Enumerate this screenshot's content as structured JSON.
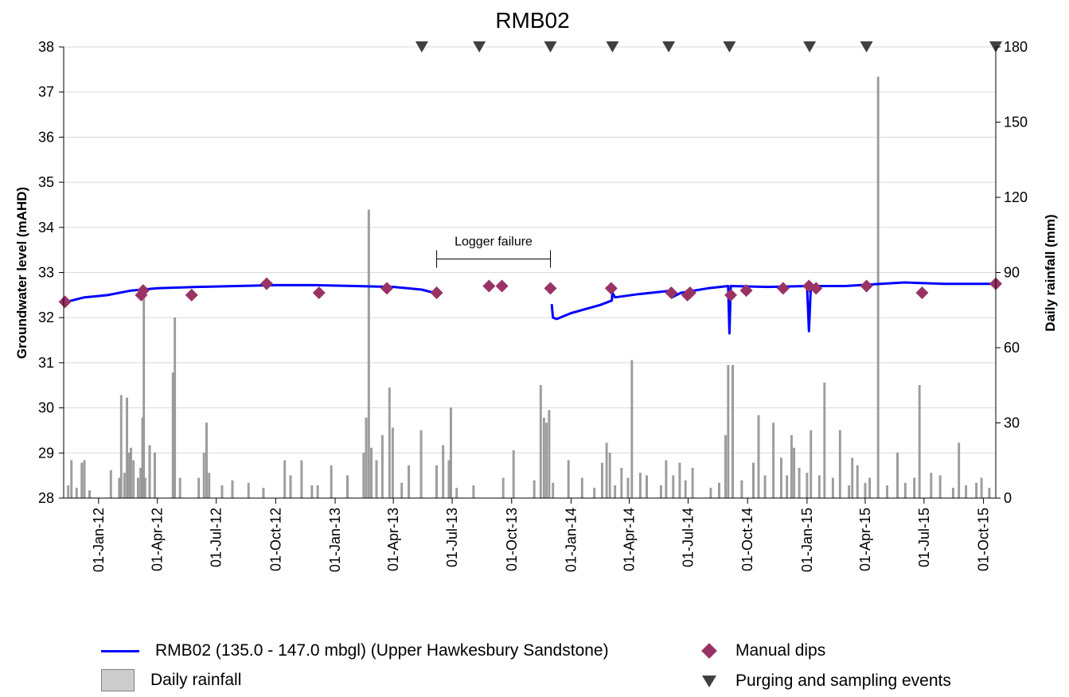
{
  "chart_data": {
    "type": "line",
    "title": "RMB02",
    "ylabel": "Groundwater level (mAHD)",
    "y2label": "Daily rainfall (mm)",
    "ylim": [
      28,
      38
    ],
    "y2lim": [
      0,
      180
    ],
    "xlim": [
      "2011-11-08",
      "2015-10-20"
    ],
    "yticks": [
      28,
      29,
      30,
      31,
      32,
      33,
      34,
      35,
      36,
      37,
      38
    ],
    "y2ticks": [
      0,
      30,
      60,
      90,
      120,
      150,
      180
    ],
    "xticks": [
      {
        "date": "2012-01-01",
        "label": "01-Jan-12"
      },
      {
        "date": "2012-04-01",
        "label": "01-Apr-12"
      },
      {
        "date": "2012-07-01",
        "label": "01-Jul-12"
      },
      {
        "date": "2012-10-01",
        "label": "01-Oct-12"
      },
      {
        "date": "2013-01-01",
        "label": "01-Jan-13"
      },
      {
        "date": "2013-04-01",
        "label": "01-Apr-13"
      },
      {
        "date": "2013-07-01",
        "label": "01-Jul-13"
      },
      {
        "date": "2013-10-01",
        "label": "01-Oct-13"
      },
      {
        "date": "2014-01-01",
        "label": "01-Jan-14"
      },
      {
        "date": "2014-04-01",
        "label": "01-Apr-14"
      },
      {
        "date": "2014-07-01",
        "label": "01-Jul-14"
      },
      {
        "date": "2014-10-01",
        "label": "01-Oct-14"
      },
      {
        "date": "2015-01-01",
        "label": "01-Jan-15"
      },
      {
        "date": "2015-04-01",
        "label": "01-Apr-15"
      },
      {
        "date": "2015-07-01",
        "label": "01-Jul-15"
      },
      {
        "date": "2015-10-01",
        "label": "01-Oct-15"
      }
    ],
    "grid": "horizontal",
    "colors": {
      "groundwater": "#0000ff",
      "rainfall_fill": "#a0a0a0",
      "rainfall_edge": "#808080",
      "dips": "#993366",
      "events": "#404040",
      "grid": "#d9d9d9"
    },
    "series": [
      {
        "name": "RMB02 (135.0 - 147.0 mbgl) (Upper Hawkesbury Sandstone)",
        "type": "line",
        "segments": [
          [
            [
              "2011-11-12",
              32.35
            ],
            [
              "2011-12-10",
              32.45
            ],
            [
              "2012-01-15",
              32.5
            ],
            [
              "2012-02-20",
              32.6
            ],
            [
              "2012-04-01",
              32.65
            ],
            [
              "2012-06-01",
              32.68
            ],
            [
              "2012-08-01",
              32.7
            ],
            [
              "2012-10-01",
              32.72
            ],
            [
              "2012-12-01",
              32.72
            ],
            [
              "2013-02-01",
              32.7
            ],
            [
              "2013-04-01",
              32.68
            ],
            [
              "2013-05-15",
              32.62
            ],
            [
              "2013-06-03",
              32.55
            ]
          ],
          [
            [
              "2013-12-02",
              32.3
            ],
            [
              "2013-12-04",
              32.0
            ],
            [
              "2013-12-10",
              31.97
            ],
            [
              "2014-01-01",
              32.1
            ],
            [
              "2014-02-15",
              32.28
            ],
            [
              "2014-03-05",
              32.38
            ],
            [
              "2014-03-06",
              32.55
            ],
            [
              "2014-03-10",
              32.45
            ],
            [
              "2014-04-15",
              32.52
            ],
            [
              "2014-05-25",
              32.58
            ],
            [
              "2014-06-05",
              32.6
            ],
            [
              "2014-06-06",
              32.45
            ],
            [
              "2014-06-20",
              32.55
            ],
            [
              "2014-08-01",
              32.65
            ],
            [
              "2014-09-01",
              32.7
            ],
            [
              "2014-09-03",
              31.65
            ],
            [
              "2014-09-05",
              32.7
            ],
            [
              "2014-11-01",
              32.68
            ],
            [
              "2015-01-01",
              32.7
            ],
            [
              "2015-01-04",
              31.7
            ],
            [
              "2015-01-07",
              32.7
            ],
            [
              "2015-03-01",
              32.7
            ],
            [
              "2015-04-25",
              32.75
            ],
            [
              "2015-06-01",
              32.78
            ],
            [
              "2015-08-01",
              32.75
            ],
            [
              "2015-10-20",
              32.75
            ]
          ]
        ]
      },
      {
        "name": "Manual dips",
        "type": "scatter",
        "points": [
          [
            "2011-11-10",
            32.35
          ],
          [
            "2012-03-07",
            32.5
          ],
          [
            "2012-03-10",
            32.6
          ],
          [
            "2012-05-24",
            32.5
          ],
          [
            "2012-09-17",
            32.75
          ],
          [
            "2012-12-07",
            32.55
          ],
          [
            "2013-03-22",
            32.65
          ],
          [
            "2013-06-07",
            32.55
          ],
          [
            "2013-08-27",
            32.7
          ],
          [
            "2013-09-16",
            32.7
          ],
          [
            "2013-11-30",
            32.65
          ],
          [
            "2014-03-04",
            32.65
          ],
          [
            "2014-06-05",
            32.55
          ],
          [
            "2014-06-30",
            32.5
          ],
          [
            "2014-07-04",
            32.55
          ],
          [
            "2014-09-05",
            32.5
          ],
          [
            "2014-09-29",
            32.6
          ],
          [
            "2014-11-25",
            32.65
          ],
          [
            "2015-01-04",
            32.7
          ],
          [
            "2015-01-15",
            32.65
          ],
          [
            "2015-04-03",
            32.7
          ],
          [
            "2015-06-28",
            32.55
          ],
          [
            "2015-10-20",
            32.75
          ]
        ]
      },
      {
        "name": "Purging and sampling events",
        "type": "markers",
        "dates": [
          "2013-05-15",
          "2013-08-12",
          "2013-11-30",
          "2014-03-06",
          "2014-06-01",
          "2014-09-03",
          "2015-01-05",
          "2015-04-03",
          "2015-10-20"
        ]
      },
      {
        "name": "Daily rainfall",
        "type": "bar",
        "axis": "y2",
        "points": [
          [
            "2011-11-15",
            5
          ],
          [
            "2011-11-20",
            15
          ],
          [
            "2011-11-28",
            4
          ],
          [
            "2011-12-06",
            14
          ],
          [
            "2011-12-10",
            15
          ],
          [
            "2011-12-18",
            3
          ],
          [
            "2012-01-20",
            11
          ],
          [
            "2012-02-02",
            8
          ],
          [
            "2012-02-05",
            41
          ],
          [
            "2012-02-10",
            10
          ],
          [
            "2012-02-14",
            40
          ],
          [
            "2012-02-17",
            18
          ],
          [
            "2012-02-20",
            20
          ],
          [
            "2012-02-24",
            15
          ],
          [
            "2012-03-02",
            8
          ],
          [
            "2012-03-06",
            12
          ],
          [
            "2012-03-09",
            32
          ],
          [
            "2012-03-11",
            80
          ],
          [
            "2012-03-13",
            8
          ],
          [
            "2012-03-20",
            21
          ],
          [
            "2012-03-28",
            18
          ],
          [
            "2012-04-25",
            50
          ],
          [
            "2012-04-28",
            72
          ],
          [
            "2012-05-06",
            8
          ],
          [
            "2012-06-04",
            8
          ],
          [
            "2012-06-12",
            18
          ],
          [
            "2012-06-16",
            30
          ],
          [
            "2012-06-20",
            10
          ],
          [
            "2012-07-10",
            5
          ],
          [
            "2012-07-26",
            7
          ],
          [
            "2012-08-20",
            6
          ],
          [
            "2012-09-12",
            4
          ],
          [
            "2012-10-15",
            15
          ],
          [
            "2012-10-24",
            9
          ],
          [
            "2012-11-10",
            15
          ],
          [
            "2012-11-26",
            5
          ],
          [
            "2012-12-05",
            5
          ],
          [
            "2012-12-26",
            13
          ],
          [
            "2013-01-20",
            9
          ],
          [
            "2013-02-14",
            18
          ],
          [
            "2013-02-18",
            32
          ],
          [
            "2013-02-22",
            115
          ],
          [
            "2013-02-26",
            20
          ],
          [
            "2013-03-06",
            15
          ],
          [
            "2013-03-15",
            25
          ],
          [
            "2013-03-26",
            44
          ],
          [
            "2013-03-31",
            28
          ],
          [
            "2013-04-14",
            6
          ],
          [
            "2013-04-25",
            13
          ],
          [
            "2013-05-14",
            27
          ],
          [
            "2013-06-07",
            13
          ],
          [
            "2013-06-17",
            21
          ],
          [
            "2013-06-26",
            15
          ],
          [
            "2013-06-29",
            36
          ],
          [
            "2013-07-08",
            4
          ],
          [
            "2013-08-03",
            5
          ],
          [
            "2013-09-18",
            8
          ],
          [
            "2013-10-04",
            19
          ],
          [
            "2013-11-05",
            7
          ],
          [
            "2013-11-15",
            45
          ],
          [
            "2013-11-20",
            32
          ],
          [
            "2013-11-24",
            30
          ],
          [
            "2013-11-28",
            35
          ],
          [
            "2013-12-04",
            6
          ],
          [
            "2013-12-28",
            15
          ],
          [
            "2014-01-18",
            8
          ],
          [
            "2014-02-06",
            4
          ],
          [
            "2014-02-18",
            14
          ],
          [
            "2014-02-25",
            22
          ],
          [
            "2014-03-02",
            18
          ],
          [
            "2014-03-10",
            5
          ],
          [
            "2014-03-20",
            12
          ],
          [
            "2014-03-30",
            8
          ],
          [
            "2014-04-05",
            55
          ],
          [
            "2014-04-18",
            10
          ],
          [
            "2014-04-28",
            9
          ],
          [
            "2014-05-20",
            5
          ],
          [
            "2014-05-28",
            15
          ],
          [
            "2014-06-08",
            9
          ],
          [
            "2014-06-18",
            14
          ],
          [
            "2014-06-27",
            7
          ],
          [
            "2014-07-08",
            12
          ],
          [
            "2014-08-05",
            4
          ],
          [
            "2014-08-18",
            6
          ],
          [
            "2014-08-28",
            25
          ],
          [
            "2014-09-01",
            53
          ],
          [
            "2014-09-08",
            53
          ],
          [
            "2014-09-22",
            7
          ],
          [
            "2014-10-10",
            14
          ],
          [
            "2014-10-18",
            33
          ],
          [
            "2014-10-28",
            9
          ],
          [
            "2014-11-10",
            30
          ],
          [
            "2014-11-22",
            16
          ],
          [
            "2014-12-01",
            9
          ],
          [
            "2014-12-08",
            25
          ],
          [
            "2014-12-12",
            20
          ],
          [
            "2014-12-20",
            12
          ],
          [
            "2015-01-01",
            10
          ],
          [
            "2015-01-07",
            27
          ],
          [
            "2015-01-20",
            9
          ],
          [
            "2015-01-28",
            46
          ],
          [
            "2015-02-10",
            8
          ],
          [
            "2015-02-21",
            27
          ],
          [
            "2015-03-07",
            5
          ],
          [
            "2015-03-12",
            16
          ],
          [
            "2015-03-20",
            13
          ],
          [
            "2015-04-01",
            6
          ],
          [
            "2015-04-08",
            8
          ],
          [
            "2015-04-21",
            168
          ],
          [
            "2015-05-05",
            5
          ],
          [
            "2015-05-21",
            18
          ],
          [
            "2015-06-02",
            6
          ],
          [
            "2015-06-16",
            8
          ],
          [
            "2015-06-24",
            45
          ],
          [
            "2015-07-12",
            10
          ],
          [
            "2015-07-26",
            9
          ],
          [
            "2015-08-15",
            4
          ],
          [
            "2015-08-24",
            22
          ],
          [
            "2015-09-04",
            5
          ],
          [
            "2015-09-20",
            6
          ],
          [
            "2015-09-28",
            8
          ],
          [
            "2015-10-10",
            4
          ]
        ]
      }
    ],
    "annotations": [
      {
        "text": "Logger failure",
        "from": "2013-06-07",
        "to": "2013-11-30",
        "y": 33.3
      }
    ]
  },
  "legend": {
    "groundwater": "RMB02 (135.0 - 147.0 mbgl) (Upper Hawkesbury Sandstone)",
    "rainfall": "Daily rainfall",
    "dips": "Manual dips",
    "events": "Purging and sampling events"
  }
}
